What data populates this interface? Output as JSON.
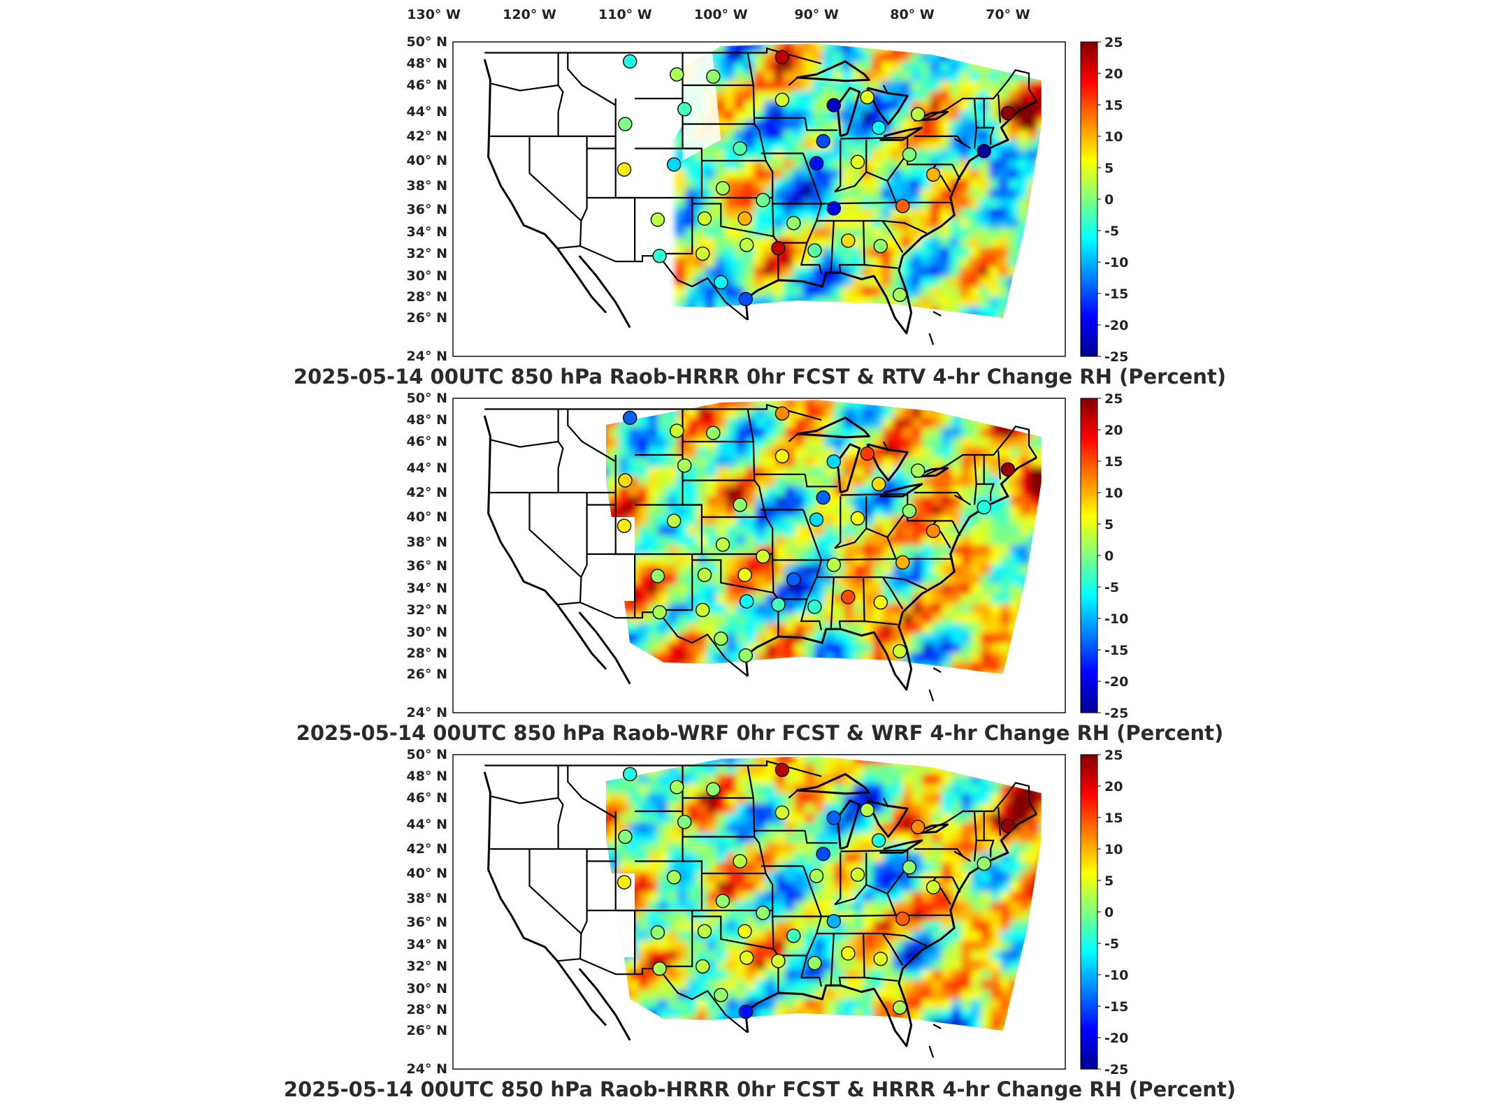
{
  "lon_ticks": [
    "130",
    "120",
    "110",
    "100",
    "90",
    "80",
    "70"
  ],
  "lon_suffix": "W",
  "lat_ticks": [
    "50",
    "48",
    "46",
    "44",
    "42",
    "40",
    "38",
    "36",
    "34",
    "32",
    "30",
    "28",
    "26",
    "24"
  ],
  "lat_suffix": "N",
  "colorbar": {
    "ticks": [
      "25",
      "20",
      "15",
      "10",
      "5",
      "0",
      "-5",
      "-10",
      "-15",
      "-20",
      "-25"
    ],
    "min": -25,
    "max": 25,
    "colors": [
      "#00008f",
      "#0000ff",
      "#0080ff",
      "#00ffff",
      "#80ff80",
      "#ffff00",
      "#ff8000",
      "#ff0000",
      "#800000"
    ]
  },
  "panels": [
    {
      "title": "2025-05-14 00UTC 850 hPa Raob-HRRR 0hr FCST & RTV 4-hr Change RH (Percent)",
      "stations": [
        {
          "lon": -109.5,
          "lat": 48.2,
          "value": -5
        },
        {
          "lon": -104.6,
          "lat": 47.0,
          "value": 2
        },
        {
          "lon": -100.8,
          "lat": 46.8,
          "value": 1
        },
        {
          "lon": -93.6,
          "lat": 48.6,
          "value": 22
        },
        {
          "lon": -110.0,
          "lat": 43.0,
          "value": 0
        },
        {
          "lon": -103.8,
          "lat": 44.2,
          "value": -3
        },
        {
          "lon": -98.0,
          "lat": 41.0,
          "value": -2
        },
        {
          "lon": -93.6,
          "lat": 44.9,
          "value": 4
        },
        {
          "lon": -88.2,
          "lat": 44.5,
          "value": -22
        },
        {
          "lon": -84.7,
          "lat": 45.1,
          "value": 5
        },
        {
          "lon": -83.5,
          "lat": 42.7,
          "value": -6
        },
        {
          "lon": -79.4,
          "lat": 43.8,
          "value": 3
        },
        {
          "lon": -70.0,
          "lat": 43.9,
          "value": 24
        },
        {
          "lon": -89.3,
          "lat": 41.6,
          "value": -15
        },
        {
          "lon": -90.0,
          "lat": 39.8,
          "value": -18
        },
        {
          "lon": -85.7,
          "lat": 39.9,
          "value": 5
        },
        {
          "lon": -80.3,
          "lat": 40.5,
          "value": 0
        },
        {
          "lon": -77.8,
          "lat": 38.9,
          "value": 10
        },
        {
          "lon": -72.5,
          "lat": 40.8,
          "value": -24
        },
        {
          "lon": -110.1,
          "lat": 39.3,
          "value": 7
        },
        {
          "lon": -104.9,
          "lat": 39.7,
          "value": -8
        },
        {
          "lon": -99.8,
          "lat": 37.8,
          "value": 2
        },
        {
          "lon": -95.6,
          "lat": 36.8,
          "value": -1
        },
        {
          "lon": -92.4,
          "lat": 34.8,
          "value": 1
        },
        {
          "lon": -88.2,
          "lat": 36.1,
          "value": -20
        },
        {
          "lon": -81.0,
          "lat": 36.3,
          "value": 14
        },
        {
          "lon": -106.6,
          "lat": 35.1,
          "value": 3
        },
        {
          "lon": -101.7,
          "lat": 35.2,
          "value": 4
        },
        {
          "lon": -97.5,
          "lat": 35.2,
          "value": 10
        },
        {
          "lon": -94.0,
          "lat": 32.5,
          "value": 22
        },
        {
          "lon": -90.2,
          "lat": 32.3,
          "value": -2
        },
        {
          "lon": -86.7,
          "lat": 33.2,
          "value": 8
        },
        {
          "lon": -83.3,
          "lat": 32.7,
          "value": 1
        },
        {
          "lon": -106.4,
          "lat": 31.8,
          "value": -4
        },
        {
          "lon": -101.9,
          "lat": 32.0,
          "value": 4
        },
        {
          "lon": -97.3,
          "lat": 32.8,
          "value": 3
        },
        {
          "lon": -100.0,
          "lat": 29.4,
          "value": -6
        },
        {
          "lon": -97.4,
          "lat": 27.8,
          "value": -15
        },
        {
          "lon": -81.3,
          "lat": 28.2,
          "value": 2
        }
      ]
    },
    {
      "title": "2025-05-14 00UTC 850 hPa Raob-WRF 0hr FCST & WRF 4-hr Change RH (Percent)",
      "stations": [
        {
          "lon": -109.5,
          "lat": 48.2,
          "value": -14
        },
        {
          "lon": -104.6,
          "lat": 47.0,
          "value": 4
        },
        {
          "lon": -100.8,
          "lat": 46.8,
          "value": 1
        },
        {
          "lon": -93.6,
          "lat": 48.6,
          "value": 12
        },
        {
          "lon": -110.0,
          "lat": 43.0,
          "value": 8
        },
        {
          "lon": -103.8,
          "lat": 44.2,
          "value": 2
        },
        {
          "lon": -98.0,
          "lat": 41.0,
          "value": 1
        },
        {
          "lon": -93.6,
          "lat": 44.9,
          "value": 6
        },
        {
          "lon": -88.2,
          "lat": 44.5,
          "value": -8
        },
        {
          "lon": -84.7,
          "lat": 45.1,
          "value": 16
        },
        {
          "lon": -83.5,
          "lat": 42.7,
          "value": 8
        },
        {
          "lon": -79.4,
          "lat": 43.8,
          "value": 2
        },
        {
          "lon": -70.0,
          "lat": 43.9,
          "value": 24
        },
        {
          "lon": -89.3,
          "lat": 41.6,
          "value": -14
        },
        {
          "lon": -90.0,
          "lat": 39.8,
          "value": -8
        },
        {
          "lon": -85.7,
          "lat": 39.9,
          "value": 6
        },
        {
          "lon": -80.3,
          "lat": 40.5,
          "value": 1
        },
        {
          "lon": -77.8,
          "lat": 38.9,
          "value": 12
        },
        {
          "lon": -72.5,
          "lat": 40.8,
          "value": -5
        },
        {
          "lon": -110.1,
          "lat": 39.3,
          "value": 7
        },
        {
          "lon": -104.9,
          "lat": 39.7,
          "value": 3
        },
        {
          "lon": -99.8,
          "lat": 37.8,
          "value": 3
        },
        {
          "lon": -95.6,
          "lat": 36.8,
          "value": 4
        },
        {
          "lon": -92.4,
          "lat": 34.8,
          "value": -14
        },
        {
          "lon": -88.2,
          "lat": 36.1,
          "value": 3
        },
        {
          "lon": -81.0,
          "lat": 36.3,
          "value": 10
        },
        {
          "lon": -106.6,
          "lat": 35.1,
          "value": 1
        },
        {
          "lon": -101.7,
          "lat": 35.2,
          "value": 3
        },
        {
          "lon": -97.5,
          "lat": 35.2,
          "value": 6
        },
        {
          "lon": -94.0,
          "lat": 32.5,
          "value": -3
        },
        {
          "lon": -90.2,
          "lat": 32.3,
          "value": -4
        },
        {
          "lon": -86.7,
          "lat": 33.2,
          "value": 15
        },
        {
          "lon": -83.3,
          "lat": 32.7,
          "value": 6
        },
        {
          "lon": -106.4,
          "lat": 31.8,
          "value": 2
        },
        {
          "lon": -101.9,
          "lat": 32.0,
          "value": 4
        },
        {
          "lon": -97.3,
          "lat": 32.8,
          "value": -6
        },
        {
          "lon": -100.0,
          "lat": 29.4,
          "value": 2
        },
        {
          "lon": -97.4,
          "lat": 27.8,
          "value": 1
        },
        {
          "lon": -81.3,
          "lat": 28.2,
          "value": 4
        }
      ]
    },
    {
      "title": "2025-05-14 00UTC 850 hPa Raob-HRRR 0hr FCST & HRRR 4-hr Change RH (Percent)",
      "stations": [
        {
          "lon": -109.5,
          "lat": 48.2,
          "value": -5
        },
        {
          "lon": -104.6,
          "lat": 47.0,
          "value": 2
        },
        {
          "lon": -100.8,
          "lat": 46.8,
          "value": 1
        },
        {
          "lon": -93.6,
          "lat": 48.6,
          "value": 22
        },
        {
          "lon": -110.0,
          "lat": 43.0,
          "value": 0
        },
        {
          "lon": -103.8,
          "lat": 44.2,
          "value": 0
        },
        {
          "lon": -98.0,
          "lat": 41.0,
          "value": 3
        },
        {
          "lon": -93.6,
          "lat": 44.9,
          "value": 4
        },
        {
          "lon": -88.2,
          "lat": 44.5,
          "value": -14
        },
        {
          "lon": -84.7,
          "lat": 45.1,
          "value": 3
        },
        {
          "lon": -83.5,
          "lat": 42.7,
          "value": -5
        },
        {
          "lon": -79.4,
          "lat": 43.8,
          "value": 12
        },
        {
          "lon": -70.0,
          "lat": 43.9,
          "value": 24
        },
        {
          "lon": -89.3,
          "lat": 41.6,
          "value": -15
        },
        {
          "lon": -90.0,
          "lat": 39.8,
          "value": 2
        },
        {
          "lon": -85.7,
          "lat": 39.9,
          "value": 4
        },
        {
          "lon": -80.3,
          "lat": 40.5,
          "value": 1
        },
        {
          "lon": -77.8,
          "lat": 38.9,
          "value": 4
        },
        {
          "lon": -72.5,
          "lat": 40.8,
          "value": 1
        },
        {
          "lon": -110.1,
          "lat": 39.3,
          "value": 7
        },
        {
          "lon": -104.9,
          "lat": 39.7,
          "value": 2
        },
        {
          "lon": -99.8,
          "lat": 37.8,
          "value": 1
        },
        {
          "lon": -95.6,
          "lat": 36.8,
          "value": 1
        },
        {
          "lon": -92.4,
          "lat": 34.8,
          "value": -3
        },
        {
          "lon": -88.2,
          "lat": 36.1,
          "value": -10
        },
        {
          "lon": -81.0,
          "lat": 36.3,
          "value": 14
        },
        {
          "lon": -106.6,
          "lat": 35.1,
          "value": 1
        },
        {
          "lon": -101.7,
          "lat": 35.2,
          "value": 3
        },
        {
          "lon": -97.5,
          "lat": 35.2,
          "value": 6
        },
        {
          "lon": -94.0,
          "lat": 32.5,
          "value": 4
        },
        {
          "lon": -90.2,
          "lat": 32.3,
          "value": 1
        },
        {
          "lon": -86.7,
          "lat": 33.2,
          "value": 6
        },
        {
          "lon": -83.3,
          "lat": 32.7,
          "value": 5
        },
        {
          "lon": -106.4,
          "lat": 31.8,
          "value": 2
        },
        {
          "lon": -101.9,
          "lat": 32.0,
          "value": 3
        },
        {
          "lon": -97.3,
          "lat": 32.8,
          "value": 5
        },
        {
          "lon": -100.0,
          "lat": 29.4,
          "value": 1
        },
        {
          "lon": -97.4,
          "lat": 27.8,
          "value": -18
        },
        {
          "lon": -81.3,
          "lat": 28.2,
          "value": 2
        }
      ]
    }
  ]
}
